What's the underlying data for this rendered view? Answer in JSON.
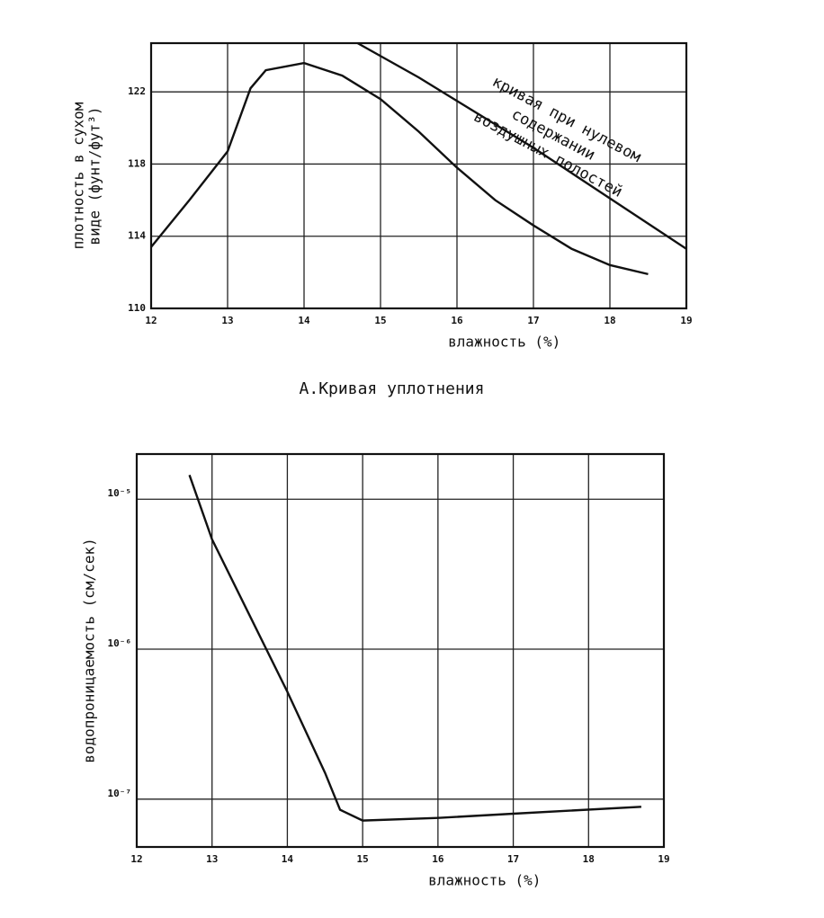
{
  "chart_data": [
    {
      "type": "line",
      "caption": "А.Кривая уплотнения",
      "x_label": "влажность (%)",
      "y_label": [
        "плотность в сухом",
        "виде (фунт/фут³)"
      ],
      "annotations": [
        "кривая при нулевом",
        "содержании",
        "воздушных полостей"
      ],
      "xlim": [
        12,
        19
      ],
      "xticks": [
        12,
        13,
        14,
        15,
        16,
        17,
        18,
        19
      ],
      "ylim": [
        110,
        124.7
      ],
      "yticks": [
        110,
        114,
        118,
        122
      ],
      "grid": true,
      "series": [
        {
          "color": "#111",
          "x": [
            12,
            12.5,
            13,
            13.3,
            13.5,
            14,
            14.5,
            15,
            15.5,
            16,
            16.5,
            17,
            17.5,
            18,
            18.5
          ],
          "values": [
            113.4,
            116,
            118.7,
            122.2,
            123.2,
            123.6,
            122.9,
            121.6,
            119.8,
            117.8,
            116.0,
            114.6,
            113.3,
            112.4,
            111.9
          ]
        },
        {
          "color": "#111",
          "x": [
            14.7,
            15.5,
            16,
            17,
            18,
            19
          ],
          "values": [
            124.7,
            122.8,
            121.5,
            118.9,
            116.1,
            113.3
          ]
        }
      ]
    },
    {
      "type": "line",
      "x_label": "влажность (%)",
      "y_label": [
        "водопроницаемость (см/сек)"
      ],
      "xlim": [
        12,
        19
      ],
      "xticks": [
        12,
        13,
        14,
        15,
        16,
        17,
        18,
        19
      ],
      "ylim": [
        4.8e-08,
        2e-05
      ],
      "log_y": true,
      "yticks": [
        {
          "value": 1e-07,
          "label": "10⁻⁷"
        },
        {
          "value": 1e-06,
          "label": "10⁻⁶"
        },
        {
          "value": 1e-05,
          "label": "10⁻⁵"
        }
      ],
      "grid": true,
      "series": [
        {
          "color": "#111",
          "x": [
            12.7,
            13,
            14,
            14.5,
            14.7,
            15,
            16,
            17,
            18.7
          ],
          "values": [
            1.45e-05,
            5.4e-06,
            5.2e-07,
            1.5e-07,
            8.5e-08,
            7.2e-08,
            7.5e-08,
            8e-08,
            8.9e-08
          ]
        }
      ]
    }
  ]
}
